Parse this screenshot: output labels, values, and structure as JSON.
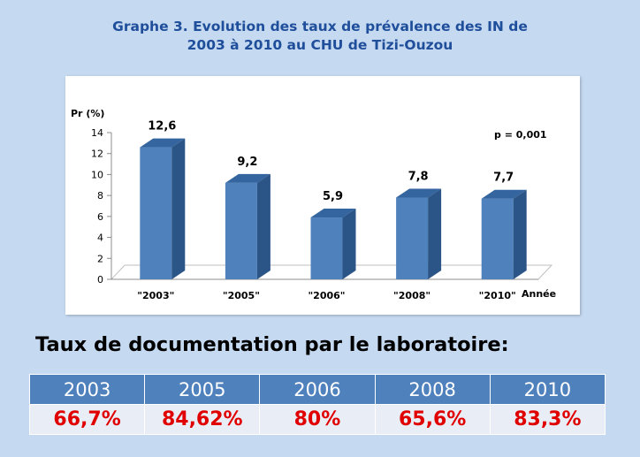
{
  "title_line1": "Graphe 3. Evolution des taux de prévalence des IN de",
  "title_line2": "2003 à 2010 au CHU de Tizi-Ouzou",
  "chart_data": {
    "type": "bar",
    "categories": [
      "\"2003\"",
      "\"2005\"",
      "\"2006\"",
      "\"2008\"",
      "\"2010\""
    ],
    "values": [
      12.6,
      9.2,
      5.9,
      7.8,
      7.7
    ],
    "data_labels": [
      "12,6",
      "9,2",
      "5,9",
      "7,8",
      "7,7"
    ],
    "ylabel": "Pr (%)",
    "xlabel": "Année",
    "ylim": [
      0,
      14
    ],
    "yticks": [
      0,
      2,
      4,
      6,
      8,
      10,
      12,
      14
    ],
    "annotation": "p = 0,001",
    "grid": false,
    "three_d": true,
    "bar_color": "#4f81bd"
  },
  "doc_heading": "Taux de documentation par le laboratoire:",
  "doc_table": {
    "years": [
      "2003",
      "2005",
      "2006",
      "2008",
      "2010"
    ],
    "rates": [
      "66,7%",
      "84,62%",
      "80%",
      "65,6%",
      "83,3%"
    ],
    "header_color": "#4f81bd",
    "value_color": "#e00000"
  }
}
